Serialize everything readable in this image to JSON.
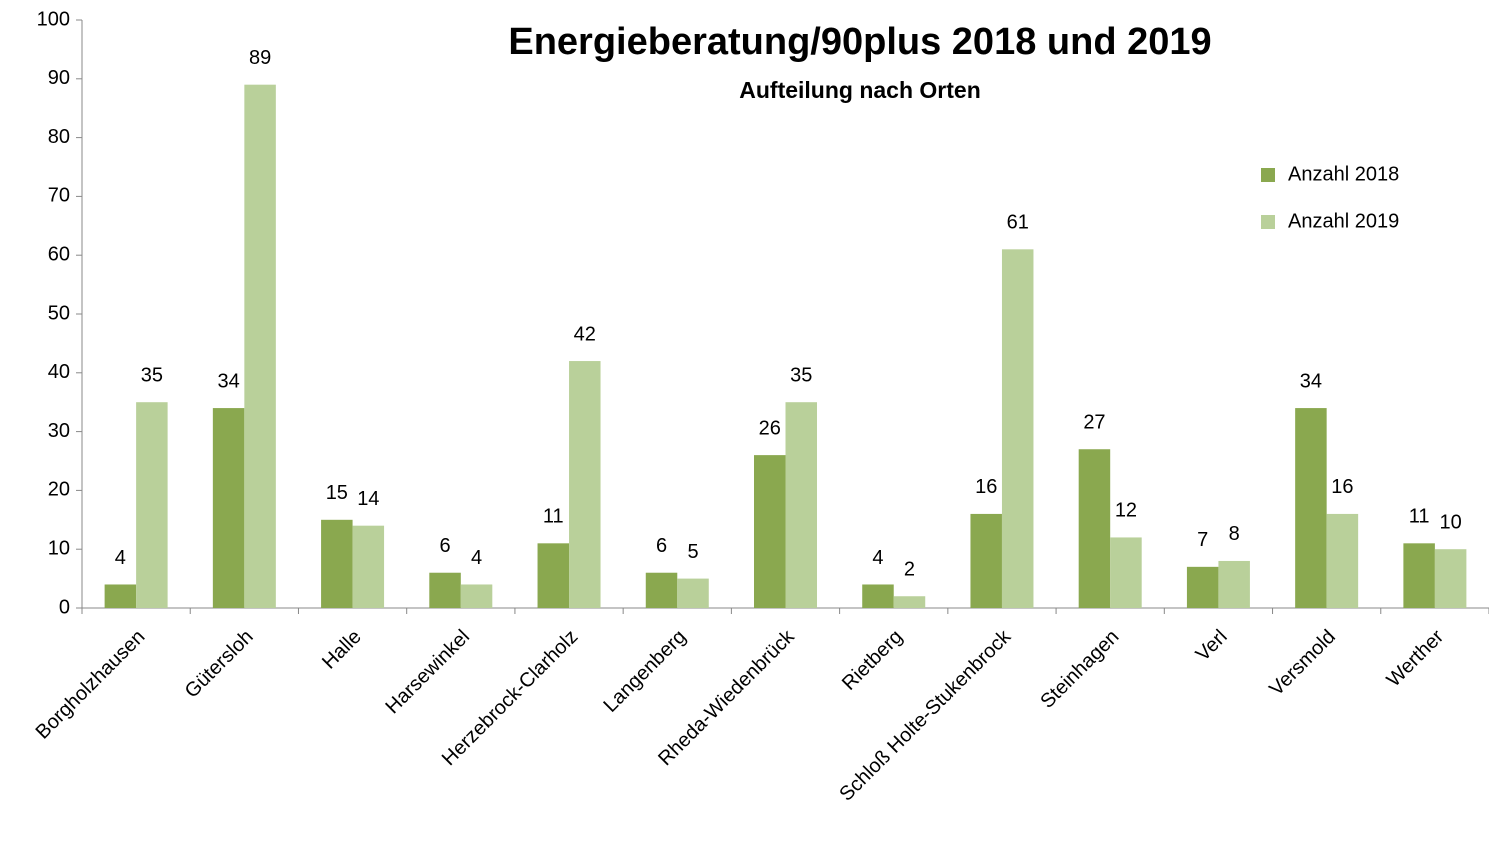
{
  "chart_data": {
    "type": "bar",
    "title": "Energieberatung/90plus 2018 und 2019",
    "subtitle": "Aufteilung nach Orten",
    "categories": [
      "Borgholzhausen",
      "Gütersloh",
      "Halle",
      "Harsewinkel",
      "Herzebrock-Clarholz",
      "Langenberg",
      "Rheda-Wiedenbrück",
      "Rietberg",
      "Schloß Holte-Stukenbrock",
      "Steinhagen",
      "Verl",
      "Versmold",
      "Werther"
    ],
    "series": [
      {
        "name": "Anzahl 2018",
        "color": "#8aa84f",
        "values": [
          4,
          34,
          15,
          6,
          11,
          6,
          26,
          4,
          16,
          27,
          7,
          34,
          11
        ]
      },
      {
        "name": "Anzahl 2019",
        "color": "#b9d09a",
        "values": [
          35,
          89,
          14,
          4,
          42,
          5,
          35,
          2,
          61,
          12,
          8,
          16,
          10
        ]
      }
    ],
    "ylim": [
      0,
      100
    ],
    "yticks": [
      0,
      10,
      20,
      30,
      40,
      50,
      60,
      70,
      80,
      90,
      100
    ],
    "grid": false,
    "legend": "right"
  }
}
